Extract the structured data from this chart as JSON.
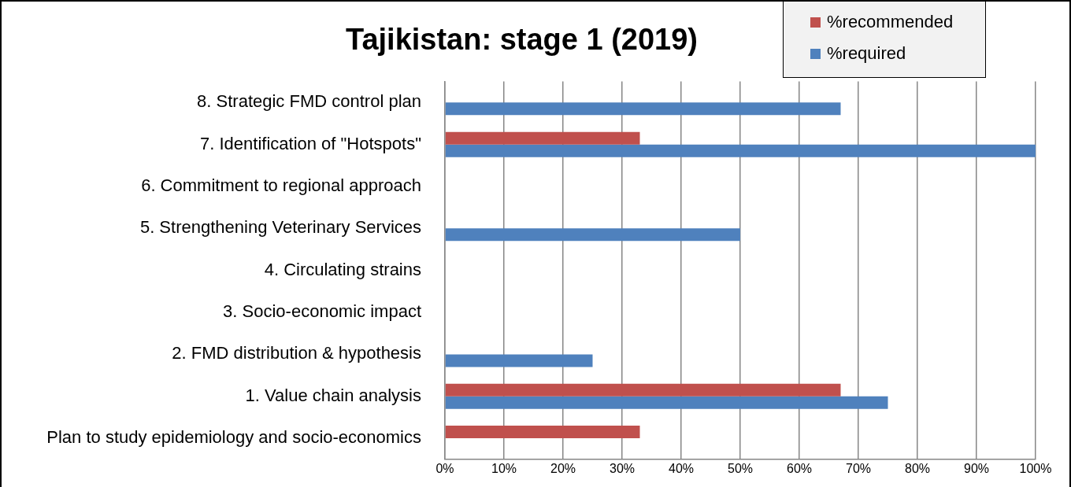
{
  "chart_data": {
    "type": "bar",
    "orientation": "horizontal",
    "title": "Tajikistan: stage 1 (2019)",
    "categories": [
      "8. Strategic FMD control plan",
      "7. Identification of \"Hotspots\"",
      "6. Commitment to regional approach",
      "5. Strengthening Veterinary Services",
      "4. Circulating strains",
      "3. Socio-economic impact",
      "2. FMD distribution & hypothesis",
      "1. Value chain analysis",
      "Plan to study epidemiology and socio-economics"
    ],
    "series": [
      {
        "name": "%recommended",
        "color": "#c0504d",
        "values": [
          0,
          33,
          0,
          0,
          0,
          0,
          0,
          67,
          33
        ]
      },
      {
        "name": "%required",
        "color": "#4f81bd",
        "values": [
          67,
          100,
          0,
          50,
          0,
          0,
          25,
          75,
          0
        ]
      }
    ],
    "xlim": [
      0,
      100
    ],
    "xticks": [
      {
        "value": 0,
        "label": "0%"
      },
      {
        "value": 10,
        "label": "10%"
      },
      {
        "value": 20,
        "label": "20%"
      },
      {
        "value": 30,
        "label": "30%"
      },
      {
        "value": 40,
        "label": "40%"
      },
      {
        "value": 50,
        "label": "50%"
      },
      {
        "value": 60,
        "label": "60%"
      },
      {
        "value": 70,
        "label": "70%"
      },
      {
        "value": 80,
        "label": "80%"
      },
      {
        "value": 90,
        "label": "90%"
      },
      {
        "value": 100,
        "label": "100%"
      }
    ],
    "grid": "x",
    "legend": "top right"
  }
}
